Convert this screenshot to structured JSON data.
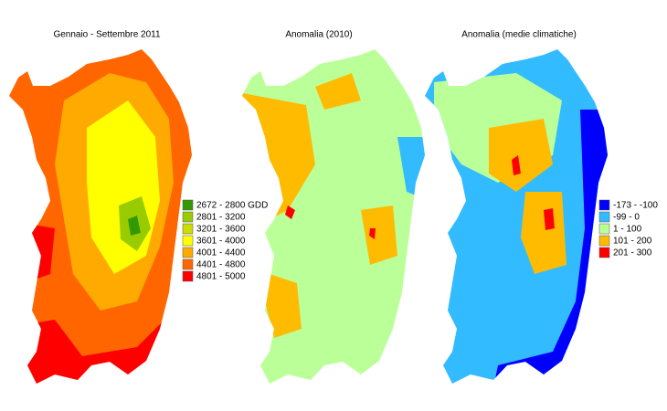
{
  "maps": [
    {
      "title": "Gennaio - Settembre 2011"
    },
    {
      "title": "Anomalia (2010)"
    },
    {
      "title": "Anomalia (medie climatiche)"
    }
  ],
  "legends": [
    {
      "items": [
        {
          "label": "2672 - 2800 GDD",
          "color": "#339900"
        },
        {
          "label": "2801 - 3200",
          "color": "#99cc00"
        },
        {
          "label": "3201 - 3600",
          "color": "#ccdd00"
        },
        {
          "label": "3601 - 4000",
          "color": "#ffff00"
        },
        {
          "label": "4001 - 4400",
          "color": "#ffaa00"
        },
        {
          "label": "4401 - 4800",
          "color": "#ff6600"
        },
        {
          "label": "4801 - 5000",
          "color": "#ff0000"
        }
      ]
    },
    {
      "items": [
        {
          "label": "-173 - -100",
          "color": "#0000ff"
        },
        {
          "label": "-99 - 0",
          "color": "#33bbff"
        },
        {
          "label": "1 - 100",
          "color": "#bbff99"
        },
        {
          "label": "101 - 200",
          "color": "#ffbb00"
        },
        {
          "label": "201 - 300",
          "color": "#ff0000"
        }
      ]
    }
  ]
}
